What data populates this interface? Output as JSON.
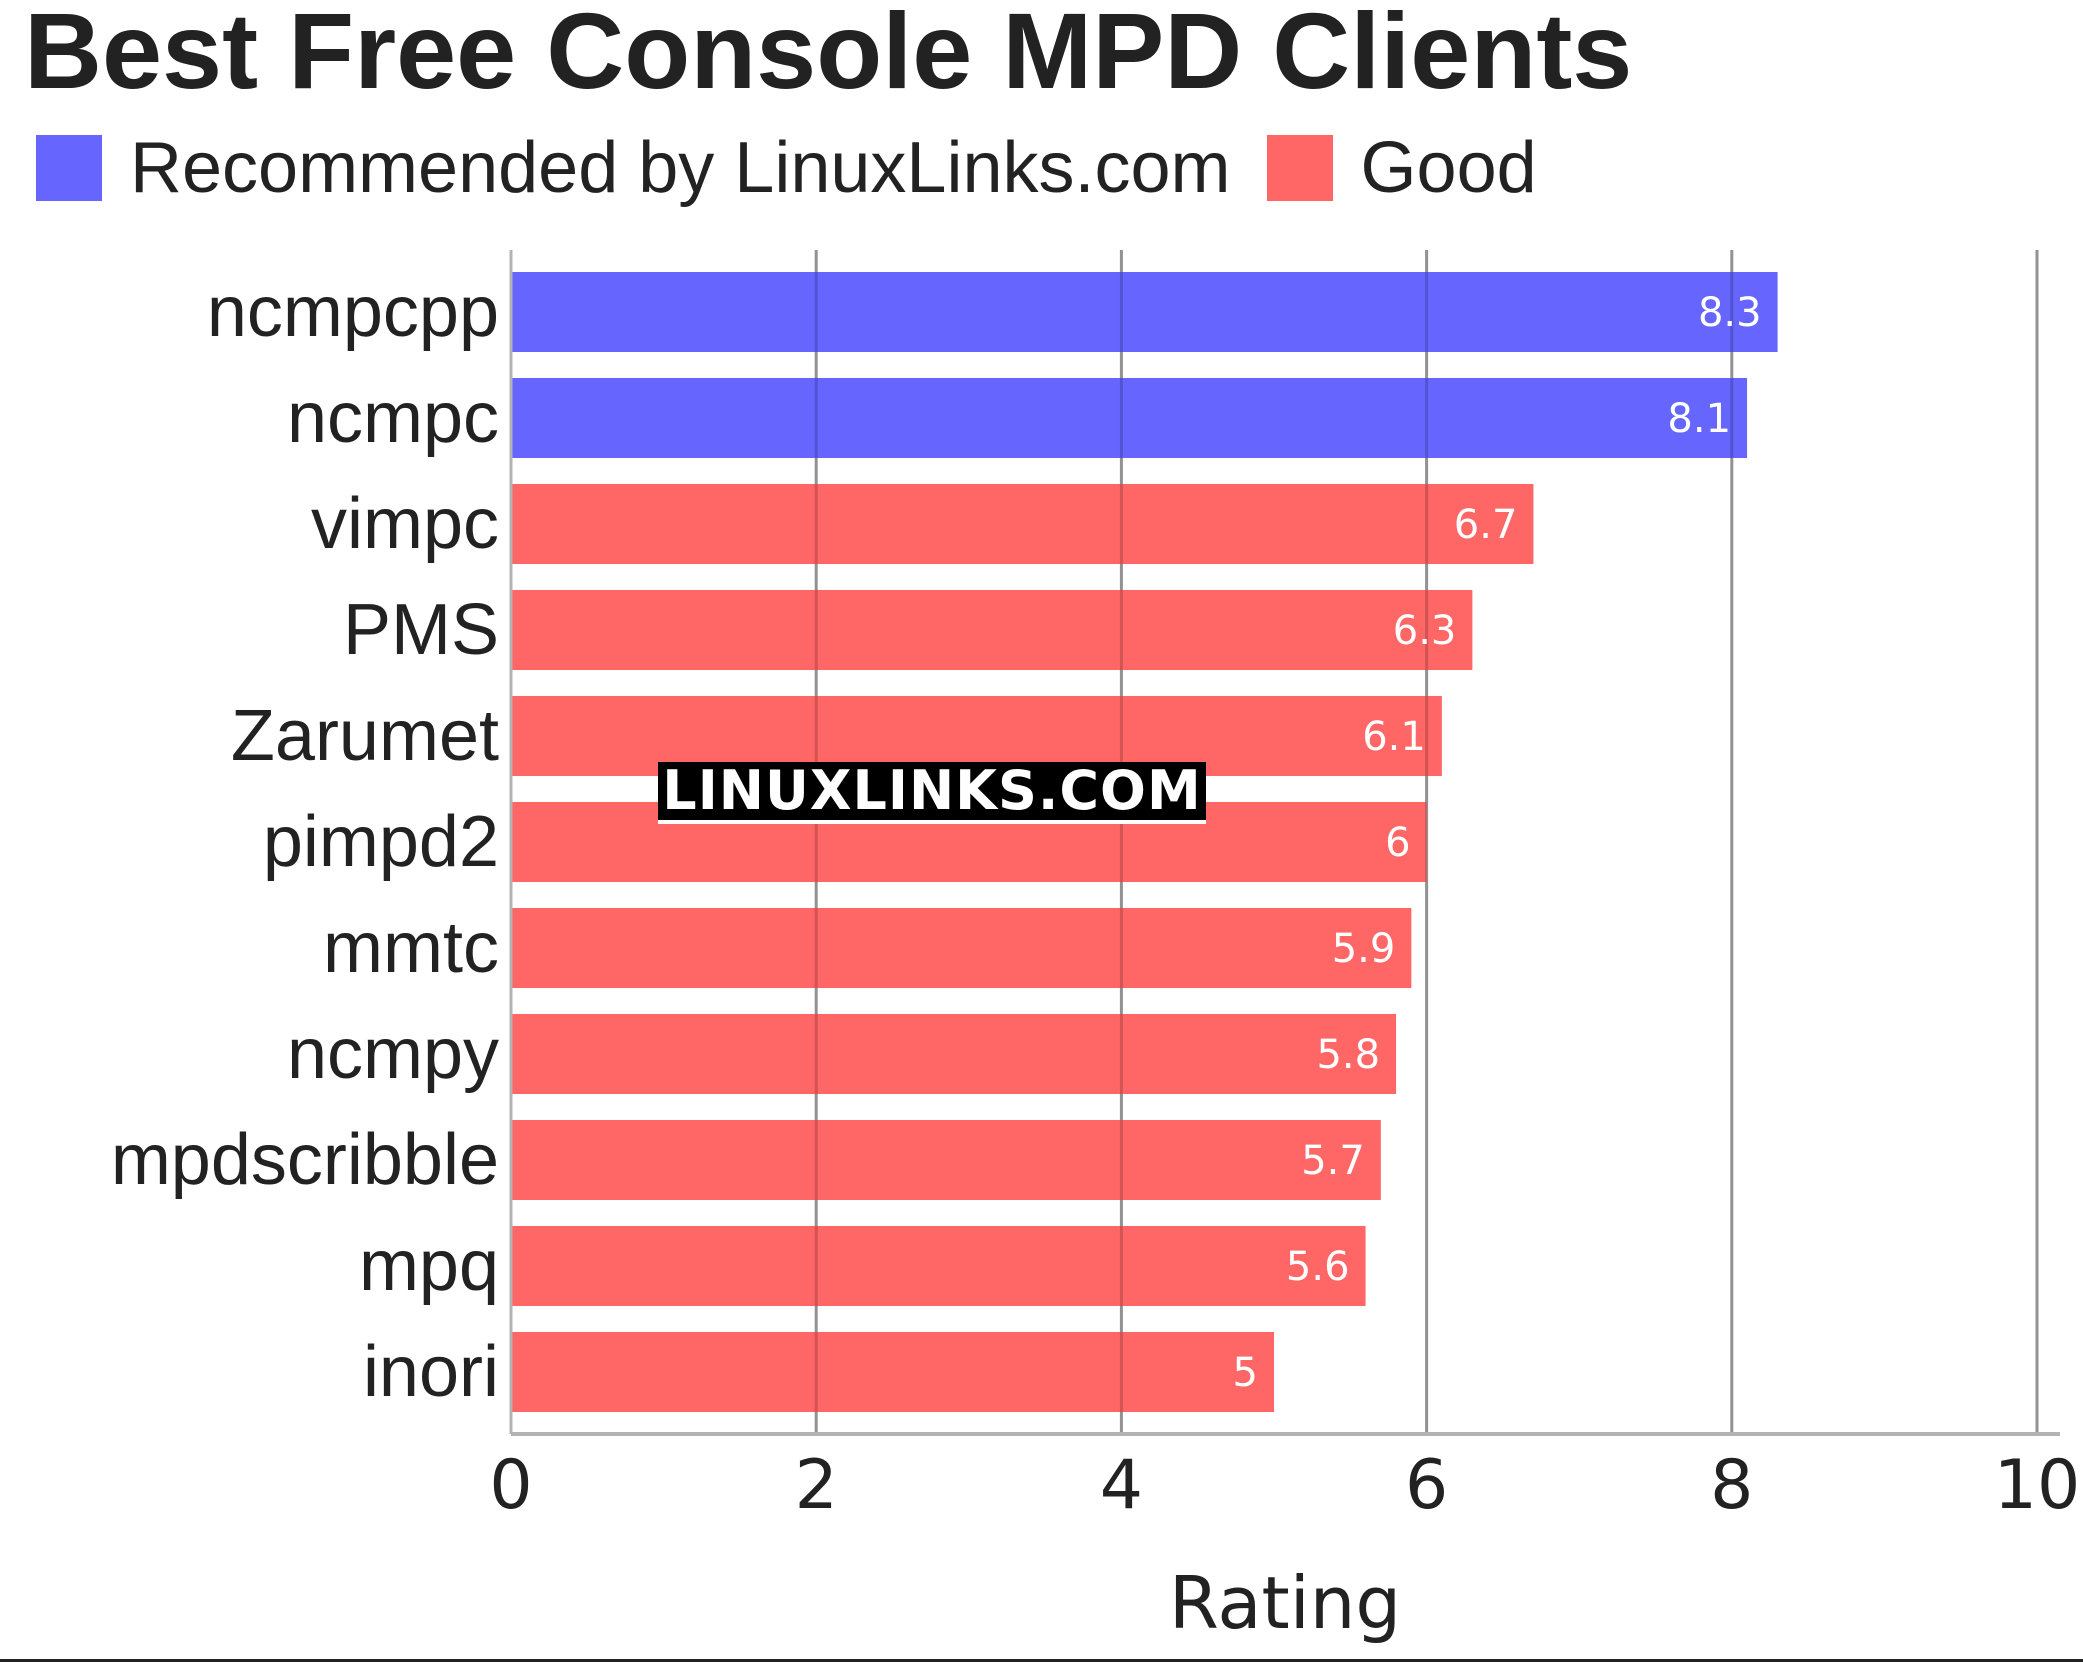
{
  "chart_data": {
    "type": "bar",
    "orientation": "horizontal",
    "title": "Best Free Console MPD Clients",
    "xlabel": "Rating",
    "ylabel": "",
    "xlim": [
      0,
      10
    ],
    "x_ticks": [
      0,
      2,
      4,
      6,
      8,
      10
    ],
    "grid": true,
    "legend_position": "top-left",
    "legend": [
      {
        "label": "Recommended by LinuxLinks.com",
        "color": "#6666ff"
      },
      {
        "label": "Good",
        "color": "#ff6666"
      }
    ],
    "categories": [
      "ncmpcpp",
      "ncmpc",
      "vimpc",
      "PMS",
      "Zarumet",
      "pimpd2",
      "mmtc",
      "ncmpy",
      "mpdscribble",
      "mpq",
      "inori"
    ],
    "values": [
      8.3,
      8.1,
      6.7,
      6.3,
      6.1,
      6,
      5.9,
      5.8,
      5.7,
      5.6,
      5
    ],
    "groups": [
      "Recommended by LinuxLinks.com",
      "Recommended by LinuxLinks.com",
      "Good",
      "Good",
      "Good",
      "Good",
      "Good",
      "Good",
      "Good",
      "Good",
      "Good"
    ],
    "data_labels": [
      "8.3",
      "8.1",
      "6.7",
      "6.3",
      "6.1",
      "6",
      "5.9",
      "5.8",
      "5.7",
      "5.6",
      "5"
    ]
  },
  "watermark": "LINUXLINKS.COM",
  "colors": {
    "recommended": "#6666ff",
    "good": "#ff6666",
    "grid": "#b3b3b3",
    "text": "#222222"
  }
}
